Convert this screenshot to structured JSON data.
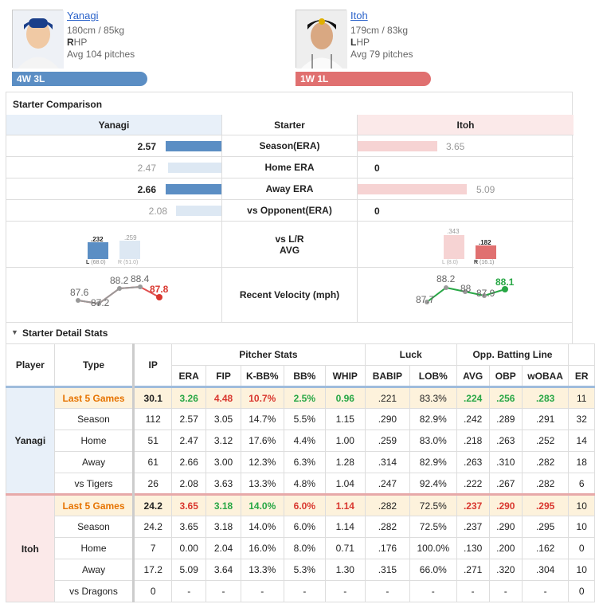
{
  "pitchers": {
    "home": {
      "name": "Yanagi",
      "info": "180cm / 85kg",
      "hand_bold": "R",
      "hand_rest": "HP",
      "avg_pitches": "Avg 104 pitches",
      "record": "4W 3L"
    },
    "away": {
      "name": "Itoh",
      "info": "179cm / 83kg",
      "hand_bold": "L",
      "hand_rest": "HP",
      "avg_pitches": "Avg 79 pitches",
      "record": "1W 1L"
    }
  },
  "comparison": {
    "title": "Starter Comparison",
    "head": {
      "left": "Yanagi",
      "mid": "Starter",
      "right": "Itoh"
    },
    "rows": [
      {
        "label": "Season(ERA)",
        "left": "2.57",
        "right": "3.65"
      },
      {
        "label": "Home ERA",
        "left": "2.47",
        "right": "0"
      },
      {
        "label": "Away ERA",
        "left": "2.66",
        "right": "5.09"
      },
      {
        "label": "vs Opponent(ERA)",
        "left": "2.08",
        "right": "0"
      }
    ],
    "lr": {
      "label1": "vs L/R",
      "label2": "AVG",
      "left": {
        "l_val": ".232",
        "l_lab": "L",
        "l_ip": "(68.0)",
        "r_val": ".259",
        "r_lab": "R",
        "r_ip": "(51.0)"
      },
      "right": {
        "l_val": ".343",
        "l_lab": "L",
        "l_ip": "(8.0)",
        "r_val": ".182",
        "r_lab": "R",
        "r_ip": "(16.1)"
      }
    },
    "velocity": {
      "label": "Recent Velocity (mph)",
      "left": [
        "87.6",
        "87.2",
        "88.2",
        "88.4",
        "87.8"
      ],
      "right": [
        "87.7",
        "88.2",
        "88",
        "87.9",
        "88.1"
      ]
    }
  },
  "detail": {
    "title": "Starter Detail Stats",
    "groups": {
      "pitcher": "Pitcher Stats",
      "luck": "Luck",
      "opp": "Opp. Batting Line"
    },
    "cols": {
      "player": "Player",
      "type": "Type",
      "ip": "IP",
      "era": "ERA",
      "fip": "FIP",
      "kbb": "K-BB%",
      "bb": "BB%",
      "whip": "WHIP",
      "babip": "BABIP",
      "lob": "LOB%",
      "avg": "AVG",
      "obp": "OBP",
      "woba": "wOBAA",
      "er": "ER"
    },
    "players": [
      {
        "name": "Yanagi",
        "rows": [
          {
            "type": "Last 5 Games",
            "ip": "30.1",
            "era": "3.26",
            "fip": "4.48",
            "kbb": "10.7%",
            "bb": "2.5%",
            "whip": "0.96",
            "babip": ".221",
            "lob": "83.3%",
            "avg": ".224",
            "obp": ".256",
            "woba": ".283",
            "er": "11"
          },
          {
            "type": "Season",
            "ip": "112",
            "era": "2.57",
            "fip": "3.05",
            "kbb": "14.7%",
            "bb": "5.5%",
            "whip": "1.15",
            "babip": ".290",
            "lob": "82.9%",
            "avg": ".242",
            "obp": ".289",
            "woba": ".291",
            "er": "32"
          },
          {
            "type": "Home",
            "ip": "51",
            "era": "2.47",
            "fip": "3.12",
            "kbb": "17.6%",
            "bb": "4.4%",
            "whip": "1.00",
            "babip": ".259",
            "lob": "83.0%",
            "avg": ".218",
            "obp": ".263",
            "woba": ".252",
            "er": "14"
          },
          {
            "type": "Away",
            "ip": "61",
            "era": "2.66",
            "fip": "3.00",
            "kbb": "12.3%",
            "bb": "6.3%",
            "whip": "1.28",
            "babip": ".314",
            "lob": "82.9%",
            "avg": ".263",
            "obp": ".310",
            "woba": ".282",
            "er": "18"
          },
          {
            "type": "vs Tigers",
            "ip": "26",
            "era": "2.08",
            "fip": "3.63",
            "kbb": "13.3%",
            "bb": "4.8%",
            "whip": "1.04",
            "babip": ".247",
            "lob": "92.4%",
            "avg": ".222",
            "obp": ".267",
            "woba": ".282",
            "er": "6"
          }
        ]
      },
      {
        "name": "Itoh",
        "rows": [
          {
            "type": "Last 5 Games",
            "ip": "24.2",
            "era": "3.65",
            "fip": "3.18",
            "kbb": "14.0%",
            "bb": "6.0%",
            "whip": "1.14",
            "babip": ".282",
            "lob": "72.5%",
            "avg": ".237",
            "obp": ".290",
            "woba": ".295",
            "er": "10"
          },
          {
            "type": "Season",
            "ip": "24.2",
            "era": "3.65",
            "fip": "3.18",
            "kbb": "14.0%",
            "bb": "6.0%",
            "whip": "1.14",
            "babip": ".282",
            "lob": "72.5%",
            "avg": ".237",
            "obp": ".290",
            "woba": ".295",
            "er": "10"
          },
          {
            "type": "Home",
            "ip": "7",
            "era": "0.00",
            "fip": "2.04",
            "kbb": "16.0%",
            "bb": "8.0%",
            "whip": "0.71",
            "babip": ".176",
            "lob": "100.0%",
            "avg": ".130",
            "obp": ".200",
            "woba": ".162",
            "er": "0"
          },
          {
            "type": "Away",
            "ip": "17.2",
            "era": "5.09",
            "fip": "3.64",
            "kbb": "13.3%",
            "bb": "5.3%",
            "whip": "1.30",
            "babip": ".315",
            "lob": "66.0%",
            "avg": ".271",
            "obp": ".320",
            "woba": ".304",
            "er": "10"
          },
          {
            "type": "vs Dragons",
            "ip": "0",
            "era": "-",
            "fip": "-",
            "kbb": "-",
            "bb": "-",
            "whip": "-",
            "babip": "-",
            "lob": "-",
            "avg": "-",
            "obp": "-",
            "woba": "-",
            "er": "0"
          }
        ]
      }
    ]
  },
  "colors": {
    "blue": "#5b8ec4",
    "red": "#e07070",
    "green": "#28a745"
  }
}
